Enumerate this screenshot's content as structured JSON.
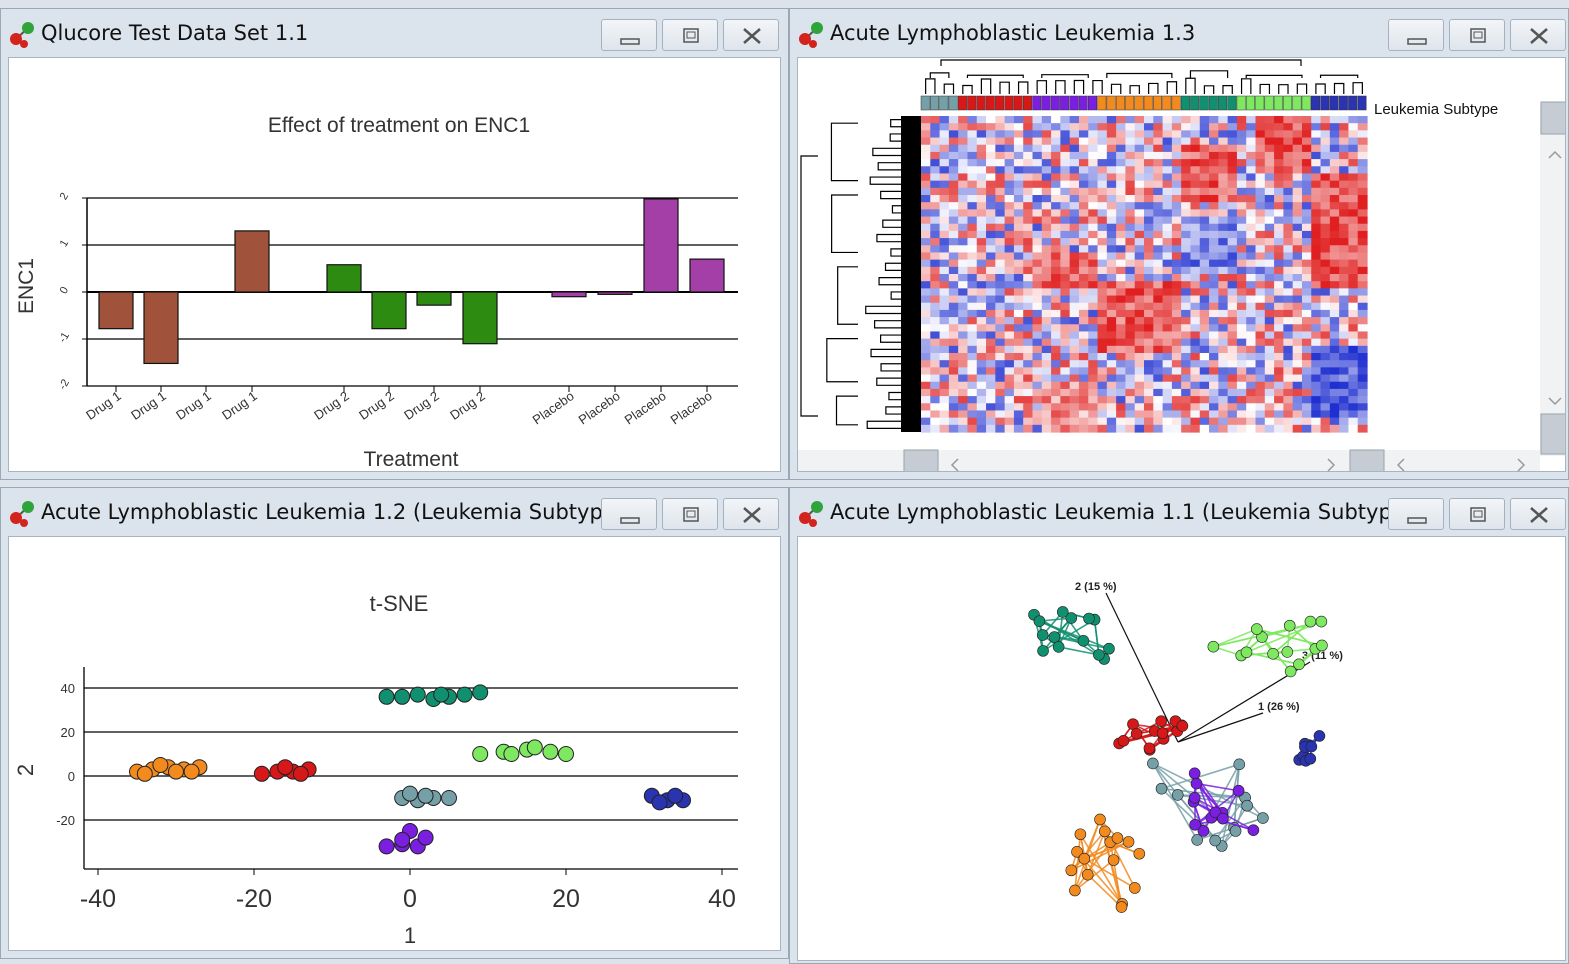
{
  "windows": {
    "bar_window": {
      "title": "Qlucore Test Data Set 1.1"
    },
    "heatmap_window": {
      "title": "Acute Lymphoblastic Leukemia 1.3",
      "legend_label": "Leukemia Subtype"
    },
    "tsne_window": {
      "title": "Acute Lymphoblastic Leukemia 1.2 (Leukemia Subtype)"
    },
    "pca_window": {
      "title": "Acute Lymphoblastic Leukemia 1.1 (Leukemia Subtype)",
      "axis_labels": [
        "2 (15 %)",
        "3 (11 %)",
        "1 (26 %)"
      ]
    }
  },
  "icons": {
    "app": "qlucore-molecule-icon",
    "minimize": "minimize-icon",
    "maximize": "maximize-icon",
    "close": "close-icon"
  },
  "colors": {
    "drug1": "#a0533a",
    "drug2": "#2e8b12",
    "placebo": "#a53fa8",
    "subtypes": [
      "#f28a1e",
      "#d61818",
      "#119070",
      "#7ee860",
      "#76a0a8",
      "#7a1fe0",
      "#2a34b0"
    ],
    "heat_high": "#e02020",
    "heat_low": "#2030d0"
  },
  "chart_data": [
    {
      "type": "bar",
      "title": "Effect of treatment on ENC1",
      "xlabel": "Treatment",
      "ylabel": "ENC1",
      "ylim": [
        -2,
        2
      ],
      "yticks": [
        "2",
        "1",
        "0",
        "-1",
        "-2"
      ],
      "categories": [
        "Drug 1",
        "Drug 1",
        "Drug 1",
        "Drug 1",
        "Drug 2",
        "Drug 2",
        "Drug 2",
        "Drug 2",
        "Placebo",
        "Placebo",
        "Placebo",
        "Placebo"
      ],
      "values": [
        -0.78,
        -1.52,
        0.0,
        1.3,
        0.58,
        -0.78,
        -0.28,
        -1.1,
        -0.1,
        -0.05,
        1.98,
        0.7
      ],
      "grid": true
    },
    {
      "type": "scatter",
      "title": "t-SNE",
      "xlabel": "1",
      "ylabel": "2",
      "xticks": [
        "-40",
        "-20",
        "0",
        "20",
        "40"
      ],
      "yticks": [
        "40",
        "20",
        "0",
        "-20"
      ],
      "xlim": [
        -42,
        42
      ],
      "ylim": [
        -38,
        48
      ],
      "series": [
        {
          "values": [
            [
              -35,
              2
            ],
            [
              -33,
              3
            ],
            [
              -31,
              4
            ],
            [
              -29,
              3
            ],
            [
              -27,
              4
            ],
            [
              -34,
              1
            ],
            [
              -32,
              5
            ],
            [
              -30,
              2
            ],
            [
              -28,
              2
            ]
          ]
        },
        {
          "values": [
            [
              -19,
              1
            ],
            [
              -17,
              2
            ],
            [
              -15,
              2
            ],
            [
              -13,
              3
            ],
            [
              -16,
              4
            ],
            [
              -14,
              1
            ]
          ]
        },
        {
          "values": [
            [
              -3,
              36
            ],
            [
              -1,
              36
            ],
            [
              1,
              37
            ],
            [
              3,
              35
            ],
            [
              5,
              36
            ],
            [
              7,
              37
            ],
            [
              9,
              38
            ],
            [
              4,
              37
            ]
          ]
        },
        {
          "values": [
            [
              9,
              10
            ],
            [
              12,
              11
            ],
            [
              15,
              12
            ],
            [
              18,
              11
            ],
            [
              20,
              10
            ],
            [
              16,
              13
            ],
            [
              13,
              10
            ]
          ]
        },
        {
          "values": [
            [
              -1,
              -10
            ],
            [
              1,
              -11
            ],
            [
              3,
              -10
            ],
            [
              5,
              -10
            ],
            [
              2,
              -9
            ],
            [
              0,
              -8
            ]
          ]
        },
        {
          "values": [
            [
              -3,
              -32
            ],
            [
              -1,
              -31
            ],
            [
              1,
              -32
            ],
            [
              2,
              -28
            ],
            [
              0,
              -25
            ],
            [
              -1,
              -29
            ]
          ]
        },
        {
          "values": [
            [
              31,
              -9
            ],
            [
              33,
              -11
            ],
            [
              35,
              -11
            ],
            [
              34,
              -9
            ],
            [
              32,
              -12
            ]
          ]
        }
      ]
    }
  ]
}
